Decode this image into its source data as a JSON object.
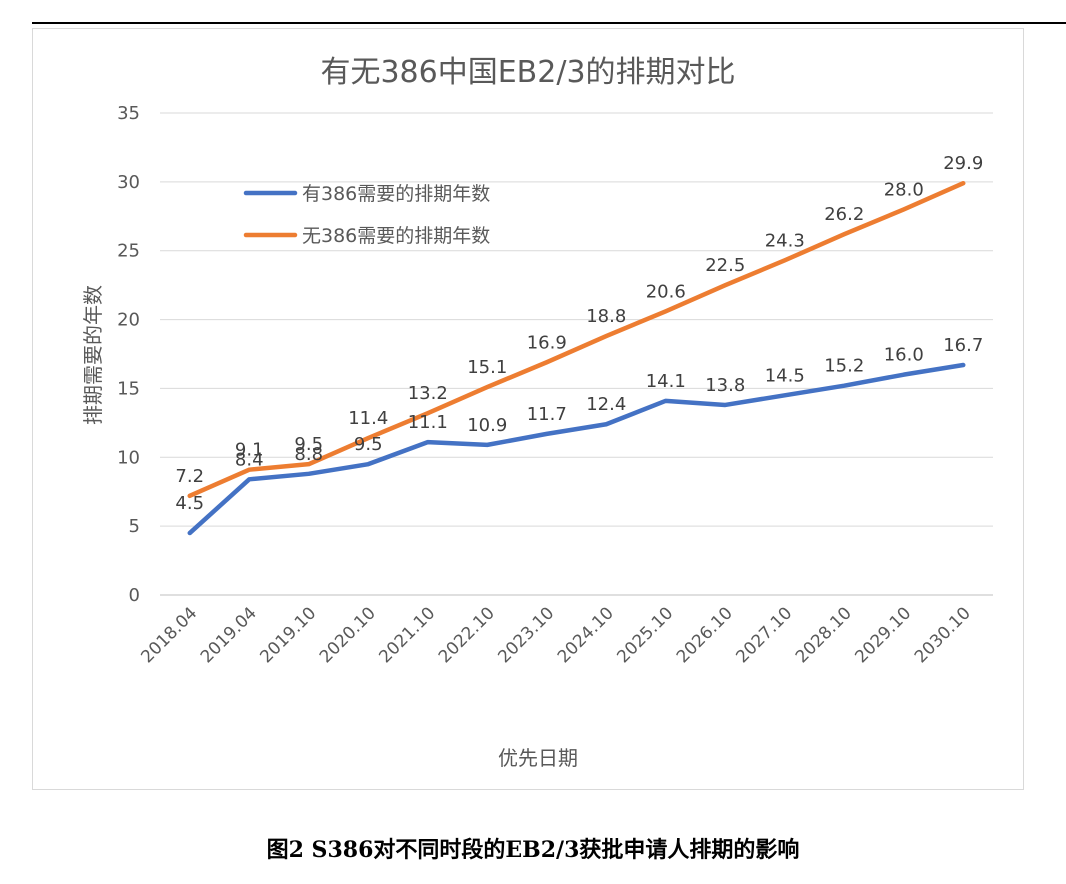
{
  "caption": "图2 S386对不同时段的EB2/3获批申请人排期的影响",
  "chart_data": {
    "type": "line",
    "title": "有无386中国EB2/3的排期对比",
    "xlabel": "优先日期",
    "ylabel": "排期需要的年数",
    "ylim": [
      0,
      35
    ],
    "yticks": [
      0,
      5,
      10,
      15,
      20,
      25,
      30,
      35
    ],
    "grid": true,
    "legend_position": "top-left",
    "categories": [
      "2018.04",
      "2019.04",
      "2019.10",
      "2020.10",
      "2021.10",
      "2022.10",
      "2023.10",
      "2024.10",
      "2025.10",
      "2026.10",
      "2027.10",
      "2028.10",
      "2029.10",
      "2030.10"
    ],
    "series": [
      {
        "name": "有386需要的排期年数",
        "color": "#4472C4",
        "values": [
          4.5,
          8.4,
          8.8,
          9.5,
          11.1,
          10.9,
          11.7,
          12.4,
          14.1,
          13.8,
          14.5,
          15.2,
          16.0,
          16.7
        ],
        "labels": [
          "4.5",
          "8.4",
          "8.8",
          "9.5",
          "11.1",
          "10.9",
          "11.7",
          "12.4",
          "14.1",
          "13.8",
          "14.5",
          "15.2",
          "16.0",
          "16.7"
        ]
      },
      {
        "name": "无386需要的排期年数",
        "color": "#ED7D31",
        "values": [
          7.2,
          9.1,
          9.5,
          11.4,
          13.2,
          15.1,
          16.9,
          18.8,
          20.6,
          22.5,
          24.3,
          26.2,
          28.0,
          29.9
        ],
        "labels": [
          "7.2",
          "9.1",
          "9.5",
          "11.4",
          "13.2",
          "15.1",
          "16.9",
          "18.8",
          "20.6",
          "22.5",
          "24.3",
          "26.2",
          "28.0",
          "29.9"
        ]
      }
    ]
  }
}
